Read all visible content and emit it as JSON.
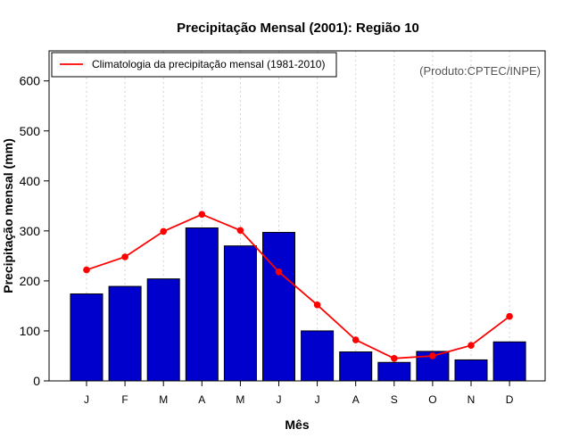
{
  "chart_data": {
    "type": "bar",
    "title": "Precipitação Mensal (2001): Região 10",
    "xlabel": "Mês",
    "ylabel": "Precipitação mensal (mm)",
    "categories": [
      "J",
      "F",
      "M",
      "A",
      "M",
      "J",
      "J",
      "A",
      "S",
      "O",
      "N",
      "D"
    ],
    "ylim": [
      0,
      650
    ],
    "yticks": [
      0,
      100,
      200,
      300,
      400,
      500,
      600
    ],
    "grid": "vertical dotted",
    "series": [
      {
        "name": "Precipitação mensal 2001",
        "type": "bar",
        "color": "#0000cd",
        "values": [
          174,
          189,
          204,
          306,
          270,
          297,
          100,
          58,
          37,
          59,
          42,
          78
        ]
      },
      {
        "name": "Climatologia da precipitação mensal (1981-2010)",
        "type": "line",
        "color": "#ff0000",
        "values": [
          222,
          248,
          299,
          333,
          301,
          218,
          152,
          82,
          45,
          50,
          71,
          129
        ]
      }
    ],
    "legend": {
      "position": "top-left",
      "entries": [
        "Climatologia da precipitação mensal (1981-2010)"
      ]
    },
    "annotation": "(Produto:CPTEC/INPE)"
  }
}
